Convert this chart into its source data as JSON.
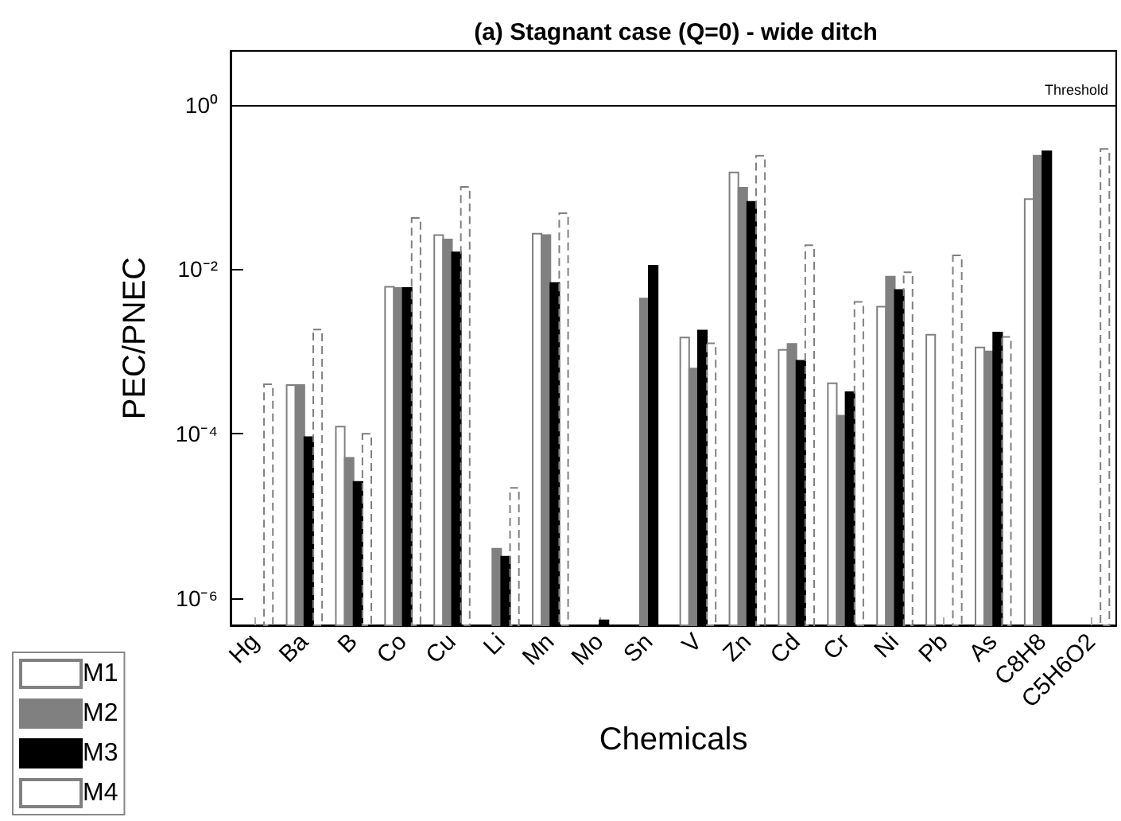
{
  "chart_data": {
    "type": "bar",
    "title": "(a) Stagnant case (Q=0) - wide ditch",
    "xlabel": "Chemicals",
    "ylabel": "PEC/PNEC",
    "categories": [
      "Hg",
      "Ba",
      "B",
      "Co",
      "Cu",
      "Li",
      "Mn",
      "Mo",
      "Sn",
      "V",
      "Zn",
      "Cd",
      "Cr",
      "Ni",
      "Pb",
      "As",
      "C8H8",
      "C5H6O2"
    ],
    "series": [
      {
        "name": "M1",
        "color": "#ffffff",
        "values": [
          null,
          0.00039,
          0.000122,
          0.0061,
          0.026,
          null,
          0.027,
          null,
          null,
          0.00148,
          0.15,
          0.00105,
          0.00041,
          0.0035,
          0.0016,
          0.00112,
          0.071,
          null
        ]
      },
      {
        "name": "M2",
        "color": "#808080",
        "values": [
          null,
          0.00039,
          5.1e-05,
          0.0059,
          0.023,
          4e-06,
          0.026,
          null,
          0.0044,
          0.00062,
          0.098,
          0.00124,
          0.000166,
          0.0081,
          null,
          0.001,
          0.24,
          null
        ]
      },
      {
        "name": "M3",
        "color": "#000000",
        "values": [
          null,
          9.1e-05,
          2.6e-05,
          0.0059,
          0.016,
          3.2e-06,
          0.0068,
          5.4e-07,
          0.011,
          0.0018,
          0.066,
          0.00077,
          0.00032,
          0.0056,
          null,
          0.0017,
          0.27,
          null
        ]
      },
      {
        "name": "M4",
        "color": "#808080",
        "line_style": "dashed",
        "values": [
          0.0004,
          0.00185,
          0.0001,
          0.042,
          0.1,
          2.2e-05,
          0.048,
          null,
          null,
          0.00126,
          0.24,
          0.0196,
          0.004,
          0.0092,
          0.0147,
          0.0015,
          null,
          0.29
        ]
      }
    ],
    "log": "y",
    "ylim": [
      4.7e-07,
      4.5
    ],
    "yticks": [
      {
        "value": 1e-06,
        "label": "10⁻⁶"
      },
      {
        "value": 0.0001,
        "label": "10⁻⁴"
      },
      {
        "value": 0.01,
        "label": "10⁻²"
      },
      {
        "value": 1,
        "label": "10⁰"
      }
    ],
    "ref_lines": [
      {
        "axis": "y",
        "value": 1,
        "label": "Threshold",
        "color": "#000000"
      }
    ],
    "grid": false,
    "legend": "bottom left"
  }
}
